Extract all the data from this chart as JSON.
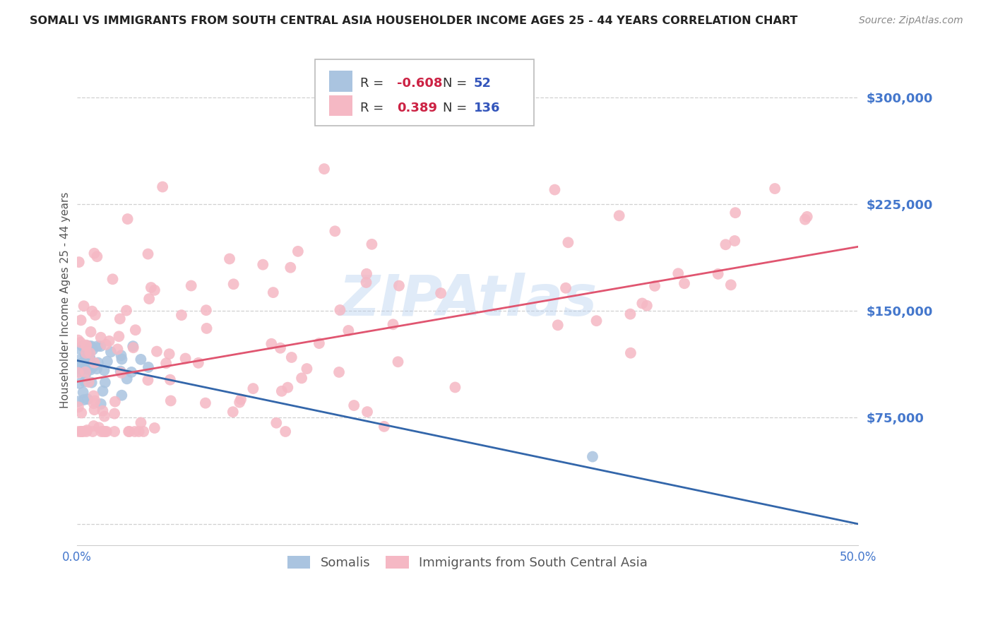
{
  "title": "SOMALI VS IMMIGRANTS FROM SOUTH CENTRAL ASIA HOUSEHOLDER INCOME AGES 25 - 44 YEARS CORRELATION CHART",
  "source": "Source: ZipAtlas.com",
  "ylabel": "Householder Income Ages 25 - 44 years",
  "xlim": [
    0.0,
    0.5
  ],
  "ylim": [
    -15000,
    330000
  ],
  "yticks": [
    0,
    75000,
    150000,
    225000,
    300000
  ],
  "xticks": [
    0.0,
    0.5
  ],
  "xtick_labels": [
    "0.0%",
    "50.0%"
  ],
  "background_color": "#ffffff",
  "grid_color": "#d0d0d0",
  "watermark": "ZIPAtlas",
  "watermark_color": "#b0ccee",
  "blue_color": "#aac4e0",
  "pink_color": "#f5b8c4",
  "blue_line_color": "#3366aa",
  "pink_line_color": "#e05570",
  "blue_r": "-0.608",
  "blue_n": "52",
  "pink_r": "0.389",
  "pink_n": "136",
  "label_blue": "Somalis",
  "label_pink": "Immigrants from South Central Asia",
  "ytick_color": "#4477cc",
  "xtick_color": "#4477cc",
  "title_color": "#222222",
  "source_color": "#888888",
  "ylabel_color": "#555555",
  "r_color": "#cc2244",
  "n_color": "#3355bb",
  "blue_line_intercept": 115000,
  "blue_line_slope": -230000,
  "pink_line_intercept": 100000,
  "pink_line_slope": 190000
}
